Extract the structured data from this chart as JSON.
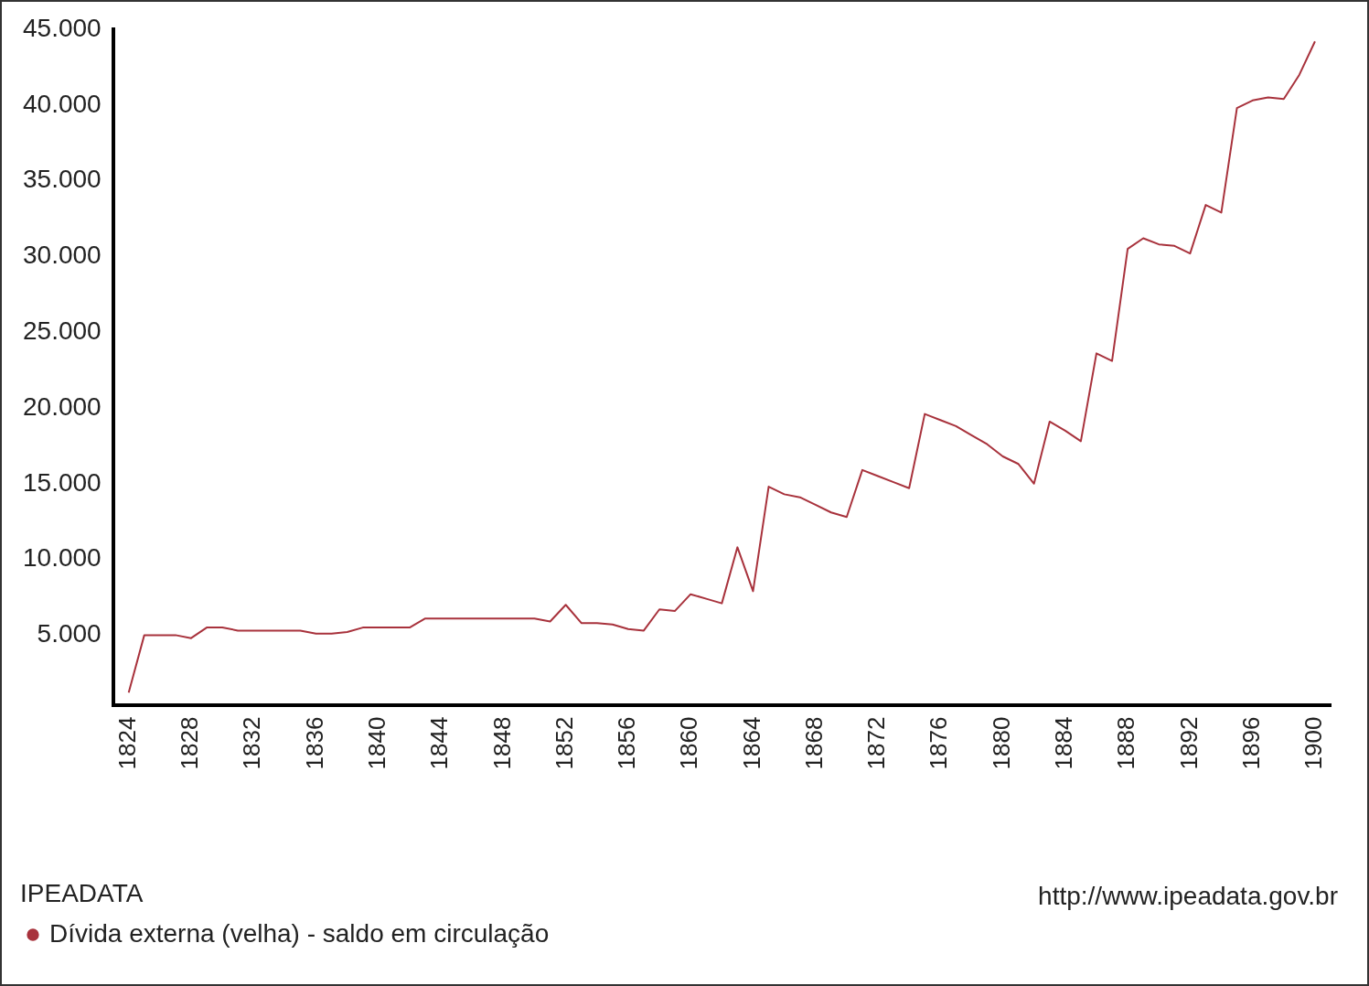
{
  "chart_data": {
    "type": "line",
    "legend_title": "IPEADATA",
    "legend": "bottom",
    "grid": false,
    "marker": "none",
    "line_style": "solid",
    "annotations": [
      "http://www.ipeadata.gov.br"
    ],
    "x": [
      1824,
      1825,
      1826,
      1827,
      1828,
      1829,
      1830,
      1831,
      1832,
      1833,
      1834,
      1835,
      1836,
      1837,
      1838,
      1839,
      1840,
      1841,
      1842,
      1843,
      1844,
      1845,
      1846,
      1847,
      1848,
      1849,
      1850,
      1851,
      1852,
      1853,
      1854,
      1855,
      1856,
      1857,
      1858,
      1859,
      1860,
      1861,
      1862,
      1863,
      1864,
      1865,
      1866,
      1867,
      1868,
      1869,
      1870,
      1871,
      1872,
      1873,
      1874,
      1875,
      1876,
      1877,
      1878,
      1879,
      1880,
      1881,
      1882,
      1883,
      1884,
      1885,
      1886,
      1887,
      1888,
      1889,
      1890,
      1891,
      1892,
      1893,
      1894,
      1895,
      1896,
      1897,
      1898,
      1899,
      1900
    ],
    "series": [
      {
        "name": "Dívida externa (velha) - saldo em circulação",
        "color": "#a8323c",
        "values": [
          1200,
          5000,
          5000,
          5000,
          4800,
          5500,
          5500,
          5300,
          5300,
          5300,
          5300,
          5300,
          5100,
          5100,
          5200,
          5500,
          5500,
          5500,
          5500,
          6100,
          6100,
          6100,
          6100,
          6100,
          6100,
          6100,
          6100,
          5900,
          7000,
          5800,
          5800,
          5700,
          5400,
          5300,
          6700,
          6600,
          7700,
          7400,
          7100,
          10800,
          7900,
          14800,
          14300,
          14100,
          13600,
          13100,
          12800,
          15900,
          15500,
          15100,
          14700,
          19600,
          19200,
          18800,
          18200,
          17600,
          16800,
          16300,
          15000,
          19100,
          18500,
          17800,
          23600,
          23100,
          30500,
          31200,
          30800,
          30700,
          30200,
          33400,
          32900,
          39800,
          40300,
          40500,
          40400,
          42000,
          44200
        ]
      }
    ],
    "xlim": [
      1823,
      1901
    ],
    "xticks": [
      1824,
      1828,
      1832,
      1836,
      1840,
      1844,
      1848,
      1852,
      1856,
      1860,
      1864,
      1868,
      1872,
      1876,
      1880,
      1884,
      1888,
      1892,
      1896,
      1900
    ],
    "ylim": [
      400,
      45000
    ],
    "yticks": [
      {
        "value": 5000,
        "label": "5.000"
      },
      {
        "value": 10000,
        "label": "10.000"
      },
      {
        "value": 15000,
        "label": "15.000"
      },
      {
        "value": 20000,
        "label": "20.000"
      },
      {
        "value": 25000,
        "label": "25.000"
      },
      {
        "value": 30000,
        "label": "30.000"
      },
      {
        "value": 35000,
        "label": "35.000"
      },
      {
        "value": 40000,
        "label": "40.000"
      },
      {
        "value": 45000,
        "label": "45.000"
      }
    ]
  }
}
